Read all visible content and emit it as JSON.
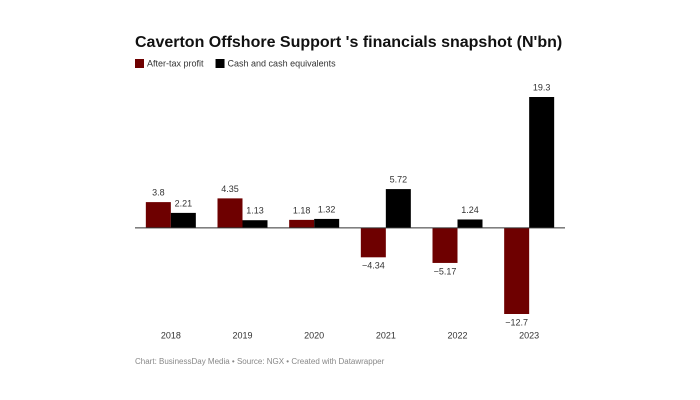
{
  "chart_data": {
    "type": "bar",
    "title": "Caverton Offshore Support 's financials snapshot (N'bn)",
    "categories": [
      "2018",
      "2019",
      "2020",
      "2021",
      "2022",
      "2023"
    ],
    "series": [
      {
        "name": "After-tax profit",
        "color": "#6e0000",
        "values": [
          3.8,
          4.35,
          1.18,
          -4.34,
          -5.17,
          -12.7
        ],
        "value_labels": [
          "3.8",
          "4.35",
          "1.18",
          "−4.34",
          "−5.17",
          "−12.7"
        ]
      },
      {
        "name": "Cash and cash equivalents",
        "color": "#000000",
        "values": [
          2.21,
          1.13,
          1.32,
          5.72,
          1.24,
          19.3
        ],
        "value_labels": [
          "2.21",
          "1.13",
          "1.32",
          "5.72",
          "1.24",
          "19.3"
        ]
      }
    ],
    "footer": "Chart: BusinessDay Media • Source: NGX • Created with Datawrapper"
  }
}
